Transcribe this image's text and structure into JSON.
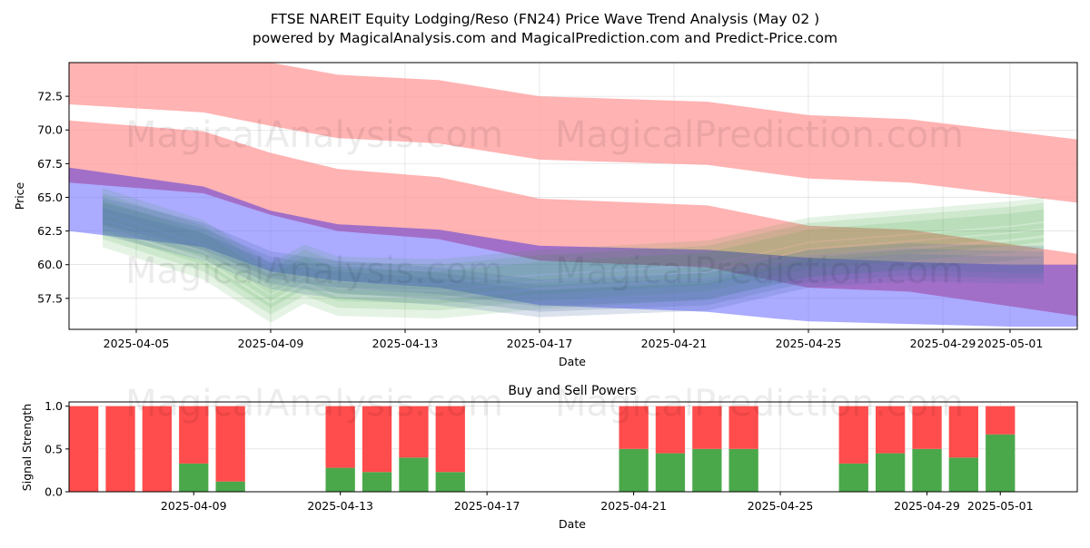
{
  "title_line1": "FTSE NAREIT Equity Lodging/Reso (FN24) Price Wave Trend Analysis (May 02 )",
  "title_line2": "powered by MagicalAnalysis.com and MagicalPrediction.com and Predict-Price.com",
  "watermarks": [
    "MagicalAnalysis.com",
    "MagicalPrediction.com"
  ],
  "colors": {
    "red_band": "#ff6666",
    "purple_band": "#9b59b6",
    "blue_band": "#6666ff",
    "green_wave": "#2ca02c",
    "steel_wave": "#4a6fa5",
    "buy": "#4aa84a",
    "sell": "#ff4c4c"
  },
  "chart_data": [
    {
      "type": "area",
      "title": "",
      "xlabel": "Date",
      "ylabel": "Price",
      "x_start": "2025-04-03",
      "x_end": "2025-05-03",
      "ylim": [
        55.2,
        75.0
      ],
      "grid": true,
      "x_tick_labels": [
        "2025-04-05",
        "2025-04-09",
        "2025-04-13",
        "2025-04-17",
        "2025-04-21",
        "2025-04-25",
        "2025-04-29",
        "2025-05-01"
      ],
      "x_ticks": [
        "2025-04-05",
        "2025-04-09",
        "2025-04-13",
        "2025-04-17",
        "2025-04-21",
        "2025-04-25",
        "2025-04-29",
        "2025-05-01"
      ],
      "y_ticks": [
        57.5,
        60.0,
        62.5,
        65.0,
        67.5,
        70.0,
        72.5
      ],
      "y_tick_labels": [
        "57.5",
        "60.0",
        "62.5",
        "65.0",
        "67.5",
        "70.0",
        "72.5"
      ],
      "bands": [
        {
          "name": "upper-red",
          "color": "#ff9999",
          "x": [
            "2025-04-03",
            "2025-04-07",
            "2025-04-09",
            "2025-04-11",
            "2025-04-14",
            "2025-04-17",
            "2025-04-22",
            "2025-04-25",
            "2025-04-28",
            "2025-05-03"
          ],
          "upper": [
            75.5,
            75.2,
            75.0,
            74.1,
            73.7,
            72.5,
            72.1,
            71.1,
            70.8,
            69.3
          ],
          "lower": [
            71.9,
            71.3,
            70.3,
            69.4,
            69.0,
            67.8,
            67.4,
            66.4,
            66.1,
            64.6
          ]
        },
        {
          "name": "middle-red",
          "color": "#ff9999",
          "x": [
            "2025-04-03",
            "2025-04-07",
            "2025-04-09",
            "2025-04-11",
            "2025-04-14",
            "2025-04-17",
            "2025-04-22",
            "2025-04-25",
            "2025-04-28",
            "2025-05-03"
          ],
          "upper": [
            70.7,
            69.9,
            68.3,
            67.1,
            66.5,
            64.9,
            64.4,
            62.9,
            62.6,
            60.8
          ],
          "lower": [
            66.1,
            65.3,
            63.7,
            62.5,
            61.9,
            60.3,
            59.8,
            58.3,
            58.0,
            56.2
          ]
        },
        {
          "name": "blue",
          "color": "#6666ff",
          "x": [
            "2025-04-03",
            "2025-04-07",
            "2025-04-09",
            "2025-04-11",
            "2025-04-14",
            "2025-04-17",
            "2025-04-22",
            "2025-04-24",
            "2025-04-25",
            "2025-04-28",
            "2025-05-01",
            "2025-05-03"
          ],
          "upper": [
            67.2,
            65.8,
            64.0,
            63.0,
            62.6,
            61.4,
            61.1,
            60.7,
            60.5,
            60.2,
            60.0,
            60.0
          ],
          "lower": [
            62.5,
            61.3,
            59.5,
            58.8,
            58.3,
            57.0,
            56.5,
            56.0,
            55.8,
            55.6,
            55.4,
            55.4
          ]
        }
      ],
      "wave_bundle": {
        "x": [
          "2025-04-04",
          "2025-04-07",
          "2025-04-09",
          "2025-04-10",
          "2025-04-11",
          "2025-04-14",
          "2025-04-17",
          "2025-04-22",
          "2025-04-25",
          "2025-04-28",
          "2025-05-01",
          "2025-05-02"
        ],
        "green_center": [
          63.6,
          61.2,
          58.0,
          59.4,
          58.5,
          58.3,
          59.0,
          59.7,
          61.4,
          62.0,
          62.6,
          62.9
        ],
        "steel_center": [
          63.6,
          61.7,
          59.6,
          59.2,
          58.9,
          58.4,
          57.5,
          58.0,
          59.7,
          60.2,
          60.0,
          60.0
        ]
      }
    },
    {
      "type": "bar",
      "title": "Buy and Sell Powers",
      "xlabel": "Date",
      "ylabel": "Signal Strength",
      "ylim": [
        0,
        1.05
      ],
      "y_ticks": [
        0.0,
        0.5,
        1.0
      ],
      "y_tick_labels": [
        "0.0",
        "0.5",
        "1.0"
      ],
      "x_ticks": [
        "2025-04-09",
        "2025-04-13",
        "2025-04-17",
        "2025-04-21",
        "2025-04-25",
        "2025-04-29",
        "2025-05-01"
      ],
      "x_tick_labels": [
        "2025-04-09",
        "2025-04-13",
        "2025-04-17",
        "2025-04-21",
        "2025-04-25",
        "2025-04-29",
        "2025-05-01"
      ],
      "x_start": "2025-04-05.6",
      "x_end": "2025-05-03.1",
      "dates": [
        "2025-04-06",
        "2025-04-07",
        "2025-04-08",
        "2025-04-09",
        "2025-04-10",
        "2025-04-13",
        "2025-04-14",
        "2025-04-15",
        "2025-04-16",
        "2025-04-21",
        "2025-04-22",
        "2025-04-23",
        "2025-04-24",
        "2025-04-27",
        "2025-04-28",
        "2025-04-29",
        "2025-04-30",
        "2025-05-01"
      ],
      "buy": [
        0.0,
        0.0,
        0.0,
        0.33,
        0.12,
        0.28,
        0.23,
        0.4,
        0.23,
        0.5,
        0.45,
        0.5,
        0.5,
        0.33,
        0.45,
        0.5,
        0.4,
        0.67
      ],
      "sell": [
        1.0,
        1.0,
        1.0,
        0.67,
        0.88,
        0.72,
        0.77,
        0.6,
        0.77,
        0.5,
        0.55,
        0.5,
        0.5,
        0.67,
        0.55,
        0.5,
        0.6,
        0.33
      ]
    }
  ]
}
